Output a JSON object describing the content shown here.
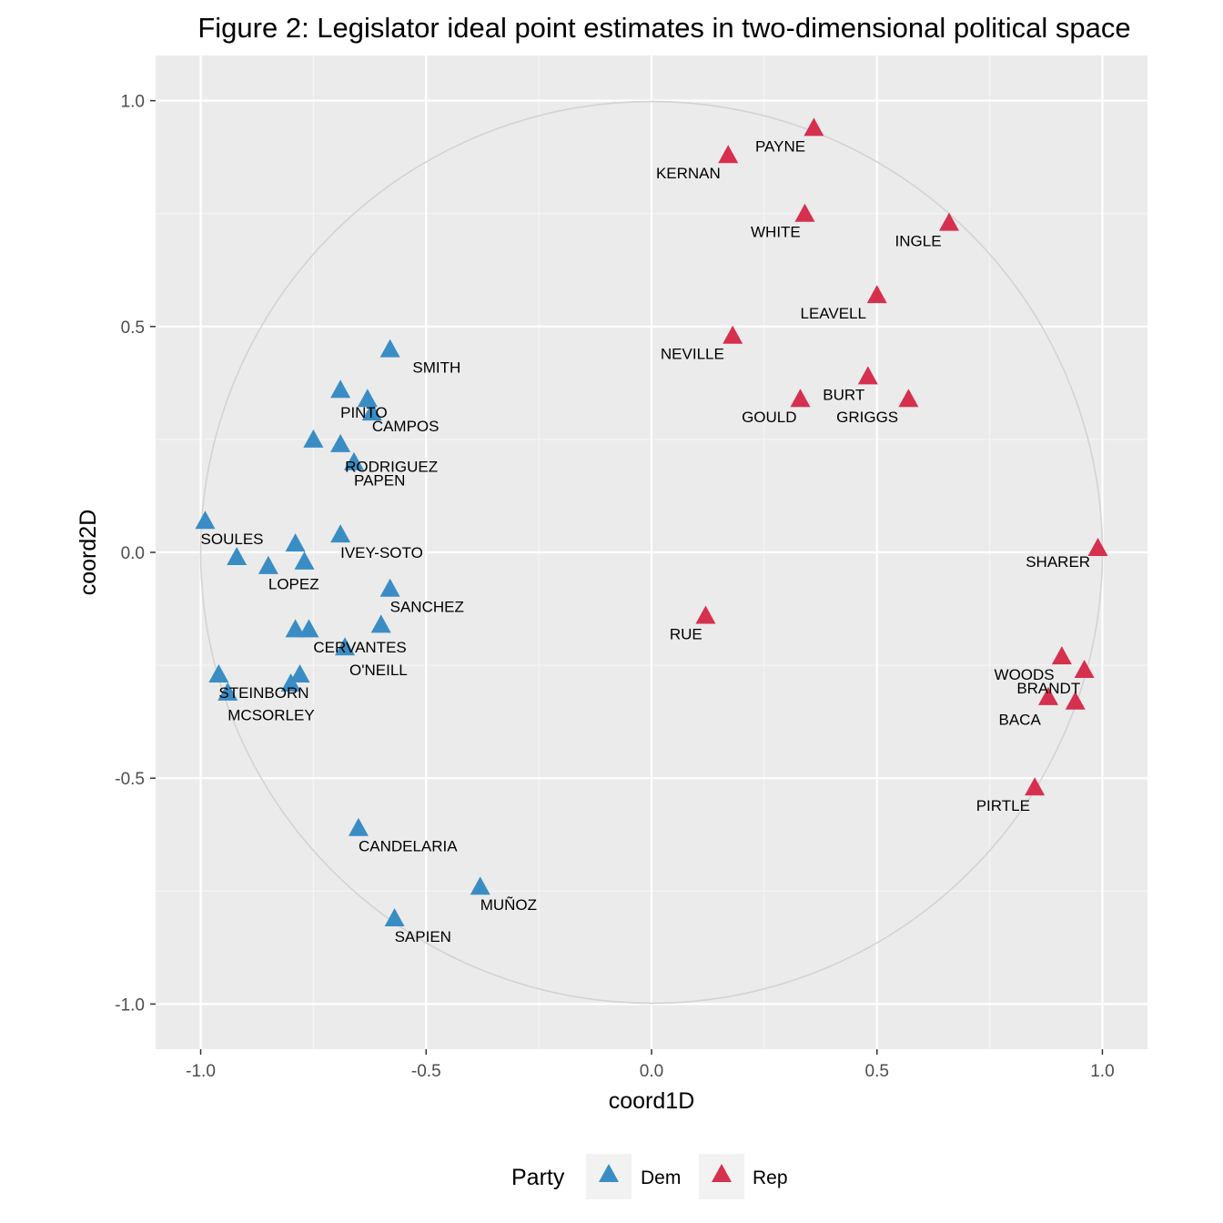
{
  "chart_data": {
    "type": "scatter",
    "title": "Figure 2: Legislator ideal point estimates in two-dimensional political space",
    "xlabel": "coord1D",
    "ylabel": "coord2D",
    "xlim": [
      -1.1,
      1.1
    ],
    "ylim": [
      -1.1,
      1.1
    ],
    "x_ticks": [
      -1.0,
      -0.5,
      0.0,
      0.5,
      1.0
    ],
    "x_tick_labels": [
      "-1.0",
      "-0.5",
      "0.0",
      "0.5",
      "1.0"
    ],
    "y_ticks": [
      -1.0,
      -0.5,
      0.0,
      0.5,
      1.0
    ],
    "y_tick_labels": [
      "-1.0",
      "-0.5",
      "0.0",
      "0.5",
      "1.0"
    ],
    "unit_circle": true,
    "grid": true,
    "legend": {
      "title": "Party",
      "position": "bottom",
      "entries": [
        {
          "name": "Dem",
          "color": "#3a8dc4"
        },
        {
          "name": "Rep",
          "color": "#d6304f"
        }
      ]
    },
    "series": [
      {
        "name": "Dem",
        "color": "#3a8dc4",
        "points": [
          {
            "x": -0.58,
            "y": 0.45
          },
          {
            "x": -0.69,
            "y": 0.36
          },
          {
            "x": -0.63,
            "y": 0.34
          },
          {
            "x": -0.62,
            "y": 0.31
          },
          {
            "x": -0.75,
            "y": 0.25
          },
          {
            "x": -0.69,
            "y": 0.24
          },
          {
            "x": -0.66,
            "y": 0.2
          },
          {
            "x": -0.69,
            "y": 0.04
          },
          {
            "x": -0.99,
            "y": 0.07
          },
          {
            "x": -0.79,
            "y": 0.02
          },
          {
            "x": -0.92,
            "y": -0.01
          },
          {
            "x": -0.77,
            "y": -0.02
          },
          {
            "x": -0.85,
            "y": -0.03
          },
          {
            "x": -0.58,
            "y": -0.08
          },
          {
            "x": -0.6,
            "y": -0.16
          },
          {
            "x": -0.79,
            "y": -0.17
          },
          {
            "x": -0.76,
            "y": -0.17
          },
          {
            "x": -0.68,
            "y": -0.21
          },
          {
            "x": -0.96,
            "y": -0.27
          },
          {
            "x": -0.78,
            "y": -0.27
          },
          {
            "x": -0.8,
            "y": -0.29
          },
          {
            "x": -0.94,
            "y": -0.31
          },
          {
            "x": -0.65,
            "y": -0.61
          },
          {
            "x": -0.38,
            "y": -0.74
          },
          {
            "x": -0.57,
            "y": -0.81
          }
        ]
      },
      {
        "name": "Rep",
        "color": "#d6304f",
        "points": [
          {
            "x": 0.36,
            "y": 0.94
          },
          {
            "x": 0.17,
            "y": 0.88
          },
          {
            "x": 0.34,
            "y": 0.75
          },
          {
            "x": 0.66,
            "y": 0.73
          },
          {
            "x": 0.5,
            "y": 0.57
          },
          {
            "x": 0.18,
            "y": 0.48
          },
          {
            "x": 0.48,
            "y": 0.39
          },
          {
            "x": 0.33,
            "y": 0.34
          },
          {
            "x": 0.57,
            "y": 0.34
          },
          {
            "x": 0.99,
            "y": 0.01
          },
          {
            "x": 0.12,
            "y": -0.14
          },
          {
            "x": 0.91,
            "y": -0.23
          },
          {
            "x": 0.96,
            "y": -0.26
          },
          {
            "x": 0.88,
            "y": -0.32
          },
          {
            "x": 0.94,
            "y": -0.33
          },
          {
            "x": 0.85,
            "y": -0.52
          }
        ]
      }
    ],
    "labels": [
      {
        "text": "SMITH",
        "x": -0.53,
        "y": 0.41
      },
      {
        "text": "PINTO",
        "x": -0.69,
        "y": 0.31
      },
      {
        "text": "CAMPOS",
        "x": -0.62,
        "y": 0.28
      },
      {
        "text": "RODRIGUEZ",
        "x": -0.68,
        "y": 0.19
      },
      {
        "text": "PAPEN",
        "x": -0.66,
        "y": 0.16
      },
      {
        "text": "SOULES",
        "x": -1.0,
        "y": 0.03
      },
      {
        "text": "IVEY-SOTO",
        "x": -0.69,
        "y": 0.0
      },
      {
        "text": "LOPEZ",
        "x": -0.85,
        "y": -0.07
      },
      {
        "text": "SANCHEZ",
        "x": -0.58,
        "y": -0.12
      },
      {
        "text": "CERVANTES",
        "x": -0.75,
        "y": -0.21
      },
      {
        "text": "O'NEILL",
        "x": -0.67,
        "y": -0.26
      },
      {
        "text": "STEINBORN",
        "x": -0.96,
        "y": -0.31
      },
      {
        "text": "MCSORLEY",
        "x": -0.94,
        "y": -0.36
      },
      {
        "text": "CANDELARIA",
        "x": -0.65,
        "y": -0.65
      },
      {
        "text": "MUÑOZ",
        "x": -0.38,
        "y": -0.78
      },
      {
        "text": "SAPIEN",
        "x": -0.57,
        "y": -0.85
      },
      {
        "text": "PAYNE",
        "x": 0.23,
        "y": 0.9
      },
      {
        "text": "KERNAN",
        "x": 0.01,
        "y": 0.84
      },
      {
        "text": "WHITE",
        "x": 0.22,
        "y": 0.71
      },
      {
        "text": "INGLE",
        "x": 0.54,
        "y": 0.69
      },
      {
        "text": "LEAVELL",
        "x": 0.33,
        "y": 0.53
      },
      {
        "text": "NEVILLE",
        "x": 0.02,
        "y": 0.44
      },
      {
        "text": "BURT",
        "x": 0.38,
        "y": 0.35
      },
      {
        "text": "GOULD",
        "x": 0.2,
        "y": 0.3
      },
      {
        "text": "GRIGGS",
        "x": 0.41,
        "y": 0.3
      },
      {
        "text": "SHARER",
        "x": 0.83,
        "y": -0.02
      },
      {
        "text": "RUE",
        "x": 0.04,
        "y": -0.18
      },
      {
        "text": "WOODS",
        "x": 0.76,
        "y": -0.27
      },
      {
        "text": "BRANDT",
        "x": 0.81,
        "y": -0.3
      },
      {
        "text": "BACA",
        "x": 0.77,
        "y": -0.37
      },
      {
        "text": "PIRTLE",
        "x": 0.72,
        "y": -0.56
      }
    ]
  }
}
